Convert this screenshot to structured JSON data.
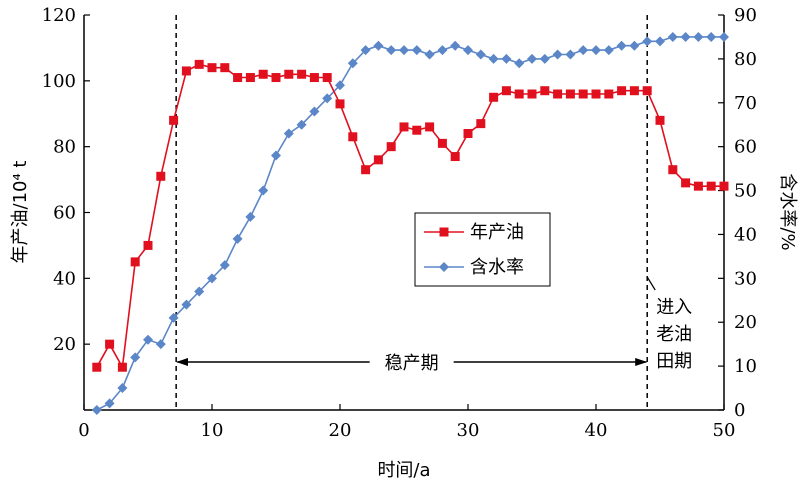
{
  "chart_data": {
    "type": "line",
    "xlabel": "时间/a",
    "ylabel_left": "年产油/10⁴ t",
    "ylabel_right": "含水率/%",
    "xlim": [
      0,
      50
    ],
    "ylim_left": [
      0,
      120
    ],
    "ylim_right": [
      0,
      90
    ],
    "xticks": [
      0,
      10,
      20,
      30,
      40,
      50
    ],
    "yticks_left": [
      20,
      40,
      60,
      80,
      100,
      120
    ],
    "yticks_right": [
      0,
      10,
      20,
      30,
      40,
      50,
      60,
      70,
      80,
      90
    ],
    "grid": false,
    "legend_placement": "center-right",
    "series": [
      {
        "name": "年产油",
        "axis": "left",
        "color": "#e0101e",
        "marker": "square",
        "x": [
          1,
          2,
          3,
          4,
          5,
          6,
          7,
          8,
          9,
          10,
          11,
          12,
          13,
          14,
          15,
          16,
          17,
          18,
          19,
          20,
          21,
          22,
          23,
          24,
          25,
          26,
          27,
          28,
          29,
          30,
          31,
          32,
          33,
          34,
          35,
          36,
          37,
          38,
          39,
          40,
          41,
          42,
          43,
          44,
          45,
          46,
          47,
          48,
          49,
          50
        ],
        "values": [
          13,
          20,
          13,
          45,
          50,
          71,
          88,
          103,
          105,
          104,
          104,
          101,
          101,
          102,
          101,
          102,
          102,
          101,
          101,
          93,
          83,
          73,
          76,
          80,
          86,
          85,
          86,
          81,
          77,
          84,
          87,
          95,
          97,
          96,
          96,
          97,
          96,
          96,
          96,
          96,
          96,
          97,
          97,
          97,
          88,
          73,
          69,
          68,
          68,
          68
        ]
      },
      {
        "name": "含水率",
        "axis": "right",
        "color": "#5b86c8",
        "marker": "diamond",
        "x": [
          1,
          2,
          3,
          4,
          5,
          6,
          7,
          8,
          9,
          10,
          11,
          12,
          13,
          14,
          15,
          16,
          17,
          18,
          19,
          20,
          21,
          22,
          23,
          24,
          25,
          26,
          27,
          28,
          29,
          30,
          31,
          32,
          33,
          34,
          35,
          36,
          37,
          38,
          39,
          40,
          41,
          42,
          43,
          44,
          45,
          46,
          47,
          48,
          49,
          50
        ],
        "values": [
          0,
          1.5,
          5,
          12,
          16,
          15,
          21,
          24,
          27,
          30,
          33,
          39,
          44,
          50,
          58,
          63,
          65,
          68,
          71,
          74,
          79,
          82,
          83,
          82,
          82,
          82,
          81,
          82,
          83,
          82,
          81,
          80,
          80,
          79,
          80,
          80,
          81,
          81,
          82,
          82,
          82,
          83,
          83,
          84,
          84,
          85,
          85,
          85,
          85,
          85
        ]
      }
    ],
    "annotations": {
      "vline_x": [
        7.2,
        44
      ],
      "stable_label": "稳产期",
      "old_field_lines": [
        "进入",
        "老油",
        "田期"
      ]
    }
  }
}
